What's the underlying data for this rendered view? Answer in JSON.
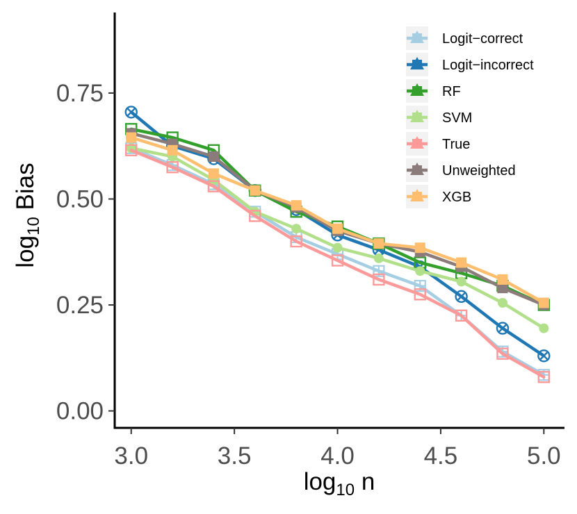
{
  "chart_data": {
    "type": "line",
    "title": "",
    "xlabel": {
      "base": "log",
      "sub": "10",
      "rest": " n"
    },
    "ylabel": {
      "base": "log",
      "sub": "10",
      "rest": " Bias"
    },
    "xlim": [
      2.92,
      5.1
    ],
    "ylim": [
      -0.04,
      0.94
    ],
    "x_ticks": [
      3.0,
      3.5,
      4.0,
      4.5,
      5.0
    ],
    "x_tick_labels": [
      "3.0",
      "3.5",
      "4.0",
      "4.5",
      "5.0"
    ],
    "y_ticks": [
      0.0,
      0.25,
      0.5,
      0.75
    ],
    "y_tick_labels": [
      "0.00",
      "0.25",
      "0.50",
      "0.75"
    ],
    "grid": false,
    "legend_position": "top-right",
    "x": [
      3.0,
      3.2,
      3.4,
      3.6,
      3.8,
      4.0,
      4.2,
      4.4,
      4.6,
      4.8,
      5.0
    ],
    "series": [
      {
        "name": "Logit−correct",
        "color": "#a6cee3",
        "marker": "square-plus",
        "values": [
          0.62,
          0.58,
          0.535,
          0.47,
          0.41,
          0.37,
          0.33,
          0.295,
          0.225,
          0.14,
          0.085
        ]
      },
      {
        "name": "Logit−incorrect",
        "color": "#1f78b4",
        "marker": "circle-x",
        "values": [
          0.705,
          0.625,
          0.595,
          0.52,
          0.475,
          0.415,
          0.38,
          0.34,
          0.27,
          0.195,
          0.13
        ]
      },
      {
        "name": "RF",
        "color": "#33a02c",
        "marker": "square-open",
        "values": [
          0.665,
          0.645,
          0.615,
          0.52,
          0.47,
          0.435,
          0.395,
          0.35,
          0.325,
          0.295,
          0.25
        ]
      },
      {
        "name": "SVM",
        "color": "#b2df8a",
        "marker": "circle",
        "values": [
          0.62,
          0.6,
          0.545,
          0.47,
          0.43,
          0.385,
          0.36,
          0.33,
          0.305,
          0.255,
          0.195
        ]
      },
      {
        "name": "True",
        "color": "#fb9a99",
        "marker": "square-open",
        "values": [
          0.615,
          0.575,
          0.53,
          0.46,
          0.4,
          0.355,
          0.31,
          0.275,
          0.225,
          0.135,
          0.08
        ]
      },
      {
        "name": "Unweighted",
        "color": "#8c7b7b",
        "marker": "square",
        "values": [
          0.655,
          0.63,
          0.6,
          0.52,
          0.48,
          0.425,
          0.395,
          0.375,
          0.34,
          0.29,
          0.25
        ]
      },
      {
        "name": "XGB",
        "color": "#fdbf6f",
        "marker": "square",
        "values": [
          0.645,
          0.615,
          0.56,
          0.52,
          0.485,
          0.43,
          0.395,
          0.385,
          0.35,
          0.31,
          0.255
        ]
      }
    ]
  }
}
